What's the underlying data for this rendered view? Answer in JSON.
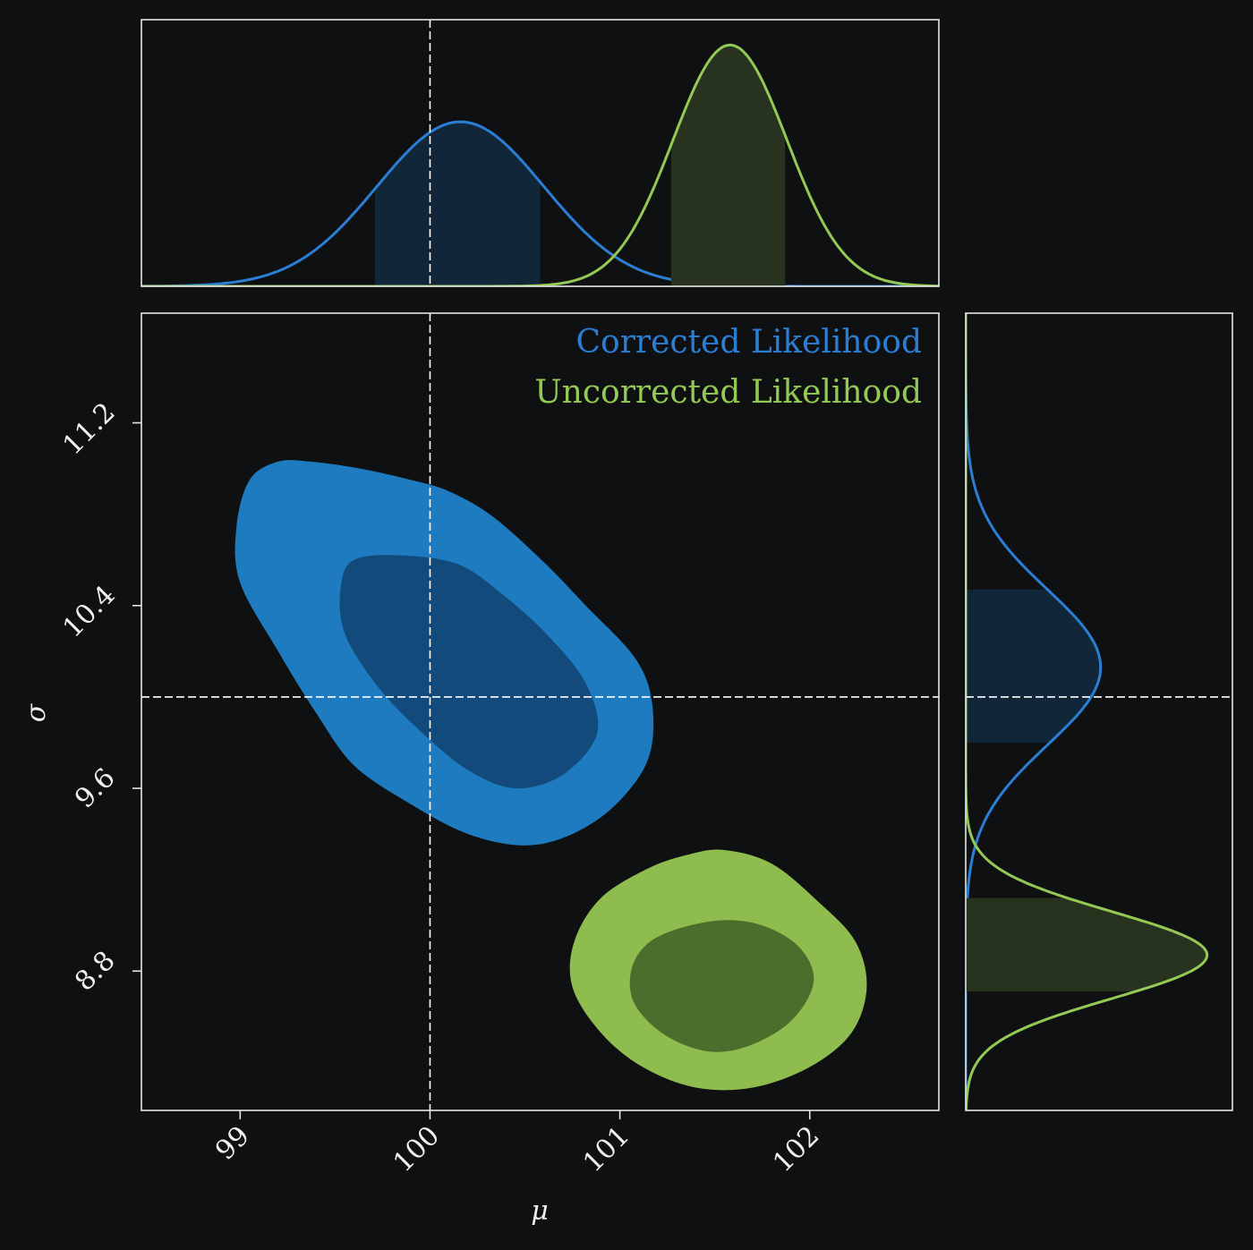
{
  "chart_data": {
    "type": "contour",
    "xlabel": "μ",
    "ylabel": "σ",
    "x_range": [
      98.48,
      102.68
    ],
    "y_range": [
      8.19,
      11.68
    ],
    "x_ticks": [
      {
        "value": 99,
        "label": "99"
      },
      {
        "value": 100,
        "label": "100"
      },
      {
        "value": 101,
        "label": "101"
      },
      {
        "value": 102,
        "label": "102"
      }
    ],
    "y_ticks": [
      {
        "value": 8.8,
        "label": "8.8"
      },
      {
        "value": 9.6,
        "label": "9.6"
      },
      {
        "value": 10.4,
        "label": "10.4"
      },
      {
        "value": 11.2,
        "label": "11.2"
      }
    ],
    "truth": {
      "mu": 100,
      "sigma": 10
    },
    "legend": {
      "placement": "top-right"
    },
    "series": [
      {
        "name": "Corrected Likelihood",
        "color": "#1e7bc0",
        "inner_color": "#124a7c",
        "curve_color": "#2a7fd4",
        "band_color": "#12263a",
        "mu_mean": 100.16,
        "mu_sd": 0.44,
        "sigma_mean": 10.13,
        "sigma_sd": 0.34,
        "mu_interval": [
          99.71,
          100.58
        ],
        "sigma_interval": [
          9.8,
          10.47
        ],
        "contour_outer": [
          [
            99.37,
            11.03
          ],
          [
            99.63,
            11.0
          ],
          [
            99.9,
            10.95
          ],
          [
            100.1,
            10.9
          ],
          [
            100.33,
            10.79
          ],
          [
            100.6,
            10.59
          ],
          [
            100.82,
            10.4
          ],
          [
            101.08,
            10.17
          ],
          [
            101.17,
            9.97
          ],
          [
            101.15,
            9.73
          ],
          [
            100.98,
            9.53
          ],
          [
            100.75,
            9.4
          ],
          [
            100.5,
            9.35
          ],
          [
            100.2,
            9.4
          ],
          [
            99.9,
            9.53
          ],
          [
            99.6,
            9.7
          ],
          [
            99.4,
            9.93
          ],
          [
            99.2,
            10.2
          ],
          [
            99.0,
            10.5
          ],
          [
            98.98,
            10.74
          ],
          [
            99.05,
            10.95
          ],
          [
            99.2,
            11.03
          ]
        ],
        "contour_inner": [
          [
            99.6,
            10.6
          ],
          [
            99.85,
            10.62
          ],
          [
            100.15,
            10.58
          ],
          [
            100.38,
            10.45
          ],
          [
            100.62,
            10.27
          ],
          [
            100.82,
            10.06
          ],
          [
            100.88,
            9.84
          ],
          [
            100.7,
            9.66
          ],
          [
            100.45,
            9.6
          ],
          [
            100.2,
            9.68
          ],
          [
            99.95,
            9.85
          ],
          [
            99.72,
            10.05
          ],
          [
            99.55,
            10.28
          ],
          [
            99.53,
            10.48
          ]
        ]
      },
      {
        "name": "Uncorrected Likelihood",
        "color": "#8fbc4f",
        "inner_color": "#4b6e2d",
        "curve_color": "#93c954",
        "band_color": "#27331f",
        "mu_mean": 101.58,
        "mu_sd": 0.3,
        "sigma_mean": 8.87,
        "sigma_sd": 0.19,
        "mu_interval": [
          101.27,
          101.87
        ],
        "sigma_interval": [
          8.71,
          9.12
        ],
        "contour_outer": [
          [
            101.55,
            9.33
          ],
          [
            101.8,
            9.27
          ],
          [
            102.05,
            9.1
          ],
          [
            102.24,
            8.93
          ],
          [
            102.3,
            8.73
          ],
          [
            102.22,
            8.53
          ],
          [
            102.0,
            8.38
          ],
          [
            101.7,
            8.29
          ],
          [
            101.4,
            8.29
          ],
          [
            101.12,
            8.38
          ],
          [
            100.9,
            8.53
          ],
          [
            100.75,
            8.73
          ],
          [
            100.76,
            8.93
          ],
          [
            100.9,
            9.12
          ],
          [
            101.15,
            9.25
          ],
          [
            101.36,
            9.31
          ]
        ],
        "contour_inner": [
          [
            101.5,
            9.02
          ],
          [
            101.75,
            9.0
          ],
          [
            101.95,
            8.9
          ],
          [
            102.02,
            8.75
          ],
          [
            101.9,
            8.58
          ],
          [
            101.67,
            8.47
          ],
          [
            101.45,
            8.45
          ],
          [
            101.22,
            8.53
          ],
          [
            101.07,
            8.67
          ],
          [
            101.07,
            8.83
          ],
          [
            101.2,
            8.95
          ]
        ]
      }
    ]
  }
}
